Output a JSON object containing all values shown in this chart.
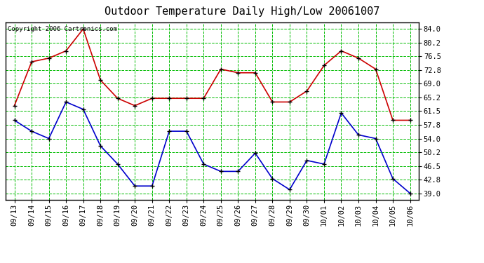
{
  "title": "Outdoor Temperature Daily High/Low 20061007",
  "copyright": "Copyright 2006 Cartronics.com",
  "dates": [
    "09/13",
    "09/14",
    "09/15",
    "09/16",
    "09/17",
    "09/18",
    "09/19",
    "09/20",
    "09/21",
    "09/22",
    "09/23",
    "09/24",
    "09/25",
    "09/26",
    "09/27",
    "09/28",
    "09/29",
    "09/30",
    "10/01",
    "10/02",
    "10/03",
    "10/04",
    "10/05",
    "10/06"
  ],
  "high": [
    63,
    75,
    76,
    78,
    84,
    70,
    65,
    63,
    65,
    65,
    65,
    65,
    73,
    72,
    72,
    64,
    64,
    67,
    74,
    78,
    76,
    73,
    59,
    59
  ],
  "low": [
    59,
    56,
    54,
    64,
    62,
    52,
    47,
    41,
    41,
    56,
    56,
    47,
    45,
    45,
    50,
    43,
    40,
    48,
    47,
    61,
    55,
    54,
    43,
    39
  ],
  "high_color": "#cc0000",
  "low_color": "#0000cc",
  "bg_color": "#ffffff",
  "plot_bg_color": "#ffffff",
  "grid_color": "#00bb00",
  "border_color": "#000000",
  "yticks": [
    39.0,
    42.8,
    46.5,
    50.2,
    54.0,
    57.8,
    61.5,
    65.2,
    69.0,
    72.8,
    76.5,
    80.2,
    84.0
  ],
  "ymin": 37.2,
  "ymax": 85.8,
  "marker": "+",
  "markersize": 5,
  "linewidth": 1.2,
  "title_fontsize": 11,
  "tick_fontsize": 7.5,
  "copyright_fontsize": 6.5
}
